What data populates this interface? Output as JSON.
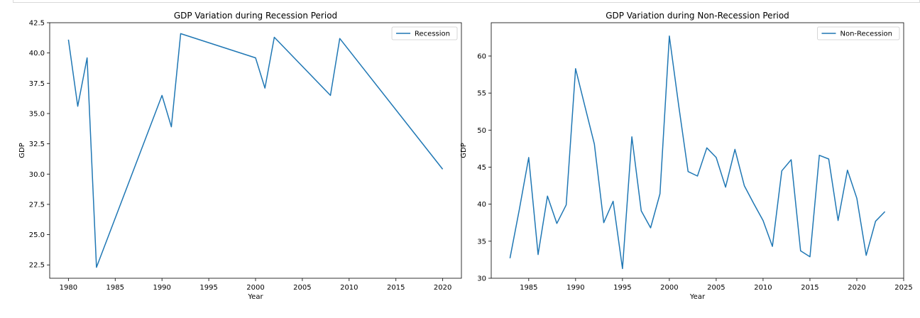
{
  "chart_data": [
    {
      "type": "line",
      "title": "GDP Variation during Recession Period",
      "xlabel": "Year",
      "ylabel": "GDP",
      "xlim": [
        1978,
        2022
      ],
      "ylim": [
        21.4,
        42.5
      ],
      "xticks": [
        1980,
        1985,
        1990,
        1995,
        2000,
        2005,
        2010,
        2015,
        2020
      ],
      "yticks": [
        22.5,
        25.0,
        27.5,
        30.0,
        32.5,
        35.0,
        37.5,
        40.0,
        42.5
      ],
      "ytick_labels": [
        "22.5",
        "25.0",
        "27.5",
        "30.0",
        "32.5",
        "35.0",
        "37.5",
        "40.0",
        "42.5"
      ],
      "legend_position": "upper-right",
      "series": [
        {
          "name": "Recession",
          "color": "#1f77b4",
          "x": [
            1980,
            1981,
            1982,
            1983,
            1990,
            1991,
            1992,
            2000,
            2001,
            2002,
            2008,
            2009,
            2020
          ],
          "y": [
            41.1,
            35.6,
            39.6,
            22.3,
            36.5,
            33.9,
            41.6,
            39.6,
            37.1,
            41.3,
            36.5,
            41.2,
            30.4
          ]
        }
      ]
    },
    {
      "type": "line",
      "title": "GDP Variation during Non-Recession Period",
      "xlabel": "Year",
      "ylabel": "GDP",
      "xlim": [
        1981,
        2025
      ],
      "ylim": [
        30,
        64.5
      ],
      "xticks": [
        1985,
        1990,
        1995,
        2000,
        2005,
        2010,
        2015,
        2020,
        2025
      ],
      "yticks": [
        30,
        35,
        40,
        45,
        50,
        55,
        60
      ],
      "ytick_labels": [
        "30",
        "35",
        "40",
        "45",
        "50",
        "55",
        "60"
      ],
      "legend_position": "upper-right",
      "series": [
        {
          "name": "Non-Recession",
          "color": "#1f77b4",
          "x": [
            1983,
            1984,
            1985,
            1986,
            1987,
            1988,
            1989,
            1990,
            1991,
            1992,
            1993,
            1994,
            1995,
            1996,
            1997,
            1998,
            1999,
            2000,
            2001,
            2002,
            2003,
            2004,
            2005,
            2006,
            2007,
            2008,
            2009,
            2010,
            2011,
            2012,
            2013,
            2014,
            2015,
            2016,
            2017,
            2018,
            2019,
            2020,
            2021,
            2022,
            2023
          ],
          "y": [
            32.7,
            39.3,
            46.3,
            33.2,
            41.1,
            37.4,
            39.9,
            58.3,
            53.2,
            48.1,
            37.5,
            40.4,
            31.3,
            49.1,
            39.1,
            36.8,
            41.4,
            62.7,
            53.3,
            44.4,
            43.8,
            47.6,
            46.3,
            42.3,
            47.4,
            42.5,
            40.1,
            37.8,
            34.3,
            44.5,
            46.0,
            33.7,
            32.9,
            46.6,
            46.1,
            37.8,
            44.6,
            40.8,
            33.1,
            37.7,
            39.0
          ]
        }
      ]
    }
  ]
}
